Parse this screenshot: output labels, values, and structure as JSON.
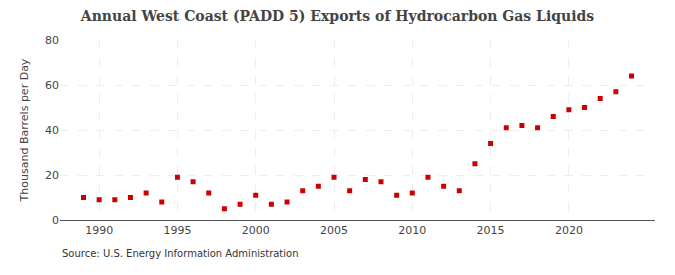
{
  "chart_data": {
    "type": "scatter",
    "title": "Annual West Coast (PADD 5) Exports of Hydrocarbon Gas Liquids",
    "y_label": "Thousand Barrels per Day",
    "annotations": [
      {
        "text": "Source: U.S. Energy Information Administration"
      }
    ],
    "x": [
      1989,
      1990,
      1991,
      1992,
      1993,
      1994,
      1995,
      1996,
      1997,
      1998,
      1999,
      2000,
      2001,
      2002,
      2003,
      2004,
      2005,
      2006,
      2007,
      2008,
      2009,
      2010,
      2011,
      2012,
      2013,
      2014,
      2015,
      2016,
      2017,
      2018,
      2019,
      2020,
      2021,
      2022,
      2023,
      2024
    ],
    "values": [
      10,
      9,
      9,
      10,
      12,
      8,
      19,
      17,
      12,
      5,
      7,
      11,
      7,
      8,
      13,
      15,
      19,
      13,
      18,
      17,
      11,
      12,
      19,
      15,
      13,
      25,
      34,
      41,
      42,
      41,
      46,
      49,
      50,
      54,
      57,
      64
    ],
    "color": "#cc0000",
    "marker": "square",
    "xlim": [
      1987.5,
      2025.5
    ],
    "xticks": [
      1990,
      1995,
      2000,
      2005,
      2010,
      2015,
      2020
    ],
    "ylim": [
      0,
      80
    ],
    "yticks": [
      0,
      20,
      40,
      60,
      80
    ],
    "grid": true
  }
}
